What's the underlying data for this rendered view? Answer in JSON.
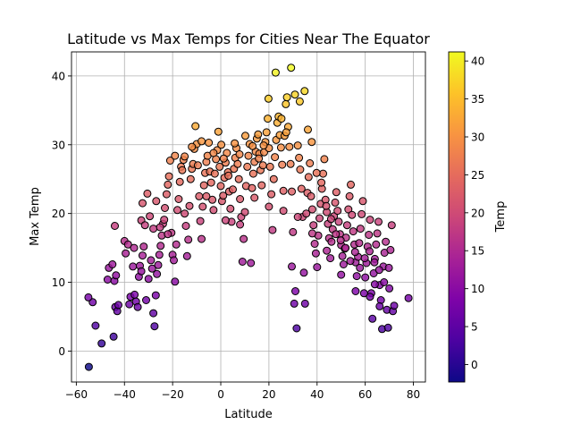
{
  "chart_data": {
    "type": "scatter",
    "title": "Latitude vs Max Temps for Cities Near The Equator",
    "xlabel": "Latitude",
    "ylabel": "Max Temp",
    "xlim": [
      -62,
      85
    ],
    "ylim": [
      -4.5,
      43.5
    ],
    "xticks": [
      -60,
      -40,
      -20,
      0,
      20,
      40,
      60,
      80
    ],
    "yticks": [
      0,
      10,
      20,
      30,
      40
    ],
    "grid": true,
    "colormap": "plasma",
    "colorbar": {
      "label": "Temp",
      "range": [
        -2.3,
        41.2
      ],
      "ticks": [
        0,
        5,
        10,
        15,
        20,
        25,
        30,
        35,
        40
      ]
    },
    "marker_edge_color": "#000000",
    "points": [
      [
        -54.8,
        -2.3
      ],
      [
        -53.2,
        7.1
      ],
      [
        -55.0,
        7.8
      ],
      [
        -52.0,
        3.7
      ],
      [
        -49.5,
        1.1
      ],
      [
        -47.0,
        10.4
      ],
      [
        -46.5,
        12.1
      ],
      [
        -45.0,
        12.6
      ],
      [
        -44.2,
        10.2
      ],
      [
        -43.5,
        11.0
      ],
      [
        -44.5,
        2.1
      ],
      [
        -43.8,
        6.4
      ],
      [
        -43.0,
        5.8
      ],
      [
        -42.5,
        6.7
      ],
      [
        -44.0,
        18.2
      ],
      [
        -40.0,
        16.0
      ],
      [
        -39.5,
        14.2
      ],
      [
        -38.5,
        15.5
      ],
      [
        -38.0,
        6.8
      ],
      [
        -37.5,
        7.9
      ],
      [
        -36.5,
        12.3
      ],
      [
        -35.8,
        8.2
      ],
      [
        -35.2,
        7.2
      ],
      [
        -34.5,
        6.4
      ],
      [
        -34.0,
        10.8
      ],
      [
        -33.6,
        12.4
      ],
      [
        -33.0,
        11.6
      ],
      [
        -32.5,
        13.9
      ],
      [
        -32.0,
        15.2
      ],
      [
        -33.0,
        19.0
      ],
      [
        -32.5,
        21.5
      ],
      [
        -31.5,
        18.3
      ],
      [
        -31.0,
        7.4
      ],
      [
        -30.0,
        10.5
      ],
      [
        -29.0,
        13.2
      ],
      [
        -28.5,
        12.0
      ],
      [
        -28.0,
        5.5
      ],
      [
        -27.5,
        3.6
      ],
      [
        -27.0,
        8.1
      ],
      [
        -26.5,
        11.2
      ],
      [
        -26.0,
        12.5
      ],
      [
        -25.5,
        14.0
      ],
      [
        -25.0,
        15.3
      ],
      [
        -24.5,
        16.8
      ],
      [
        -24.0,
        18.5
      ],
      [
        -23.5,
        19.1
      ],
      [
        -23.2,
        20.8
      ],
      [
        -22.5,
        22.8
      ],
      [
        -22.0,
        24.2
      ],
      [
        -21.5,
        25.4
      ],
      [
        -21.0,
        27.7
      ],
      [
        -20.5,
        17.2
      ],
      [
        -20.0,
        14.0
      ],
      [
        -19.5,
        13.2
      ],
      [
        -19.0,
        10.1
      ],
      [
        -18.5,
        15.5
      ],
      [
        -18.0,
        20.5
      ],
      [
        -17.5,
        22.1
      ],
      [
        -17.0,
        24.6
      ],
      [
        -16.5,
        26.8
      ],
      [
        -16.0,
        26.3
      ],
      [
        -15.5,
        27.8
      ],
      [
        -15.0,
        28.3
      ],
      [
        -14.5,
        18.2
      ],
      [
        -14.0,
        13.8
      ],
      [
        -13.5,
        16.2
      ],
      [
        -13.0,
        21.1
      ],
      [
        -12.5,
        25.0
      ],
      [
        -12.0,
        26.5
      ],
      [
        -11.5,
        27.2
      ],
      [
        -11.0,
        29.4
      ],
      [
        -10.5,
        32.7
      ],
      [
        -10.0,
        30.1
      ],
      [
        -9.5,
        27.0
      ],
      [
        -9.0,
        22.5
      ],
      [
        -8.5,
        18.9
      ],
      [
        -8.0,
        16.3
      ],
      [
        -7.5,
        21.0
      ],
      [
        -7.0,
        24.1
      ],
      [
        -6.5,
        25.9
      ],
      [
        -6.0,
        27.5
      ],
      [
        -5.5,
        28.4
      ],
      [
        -5.0,
        30.3
      ],
      [
        -4.5,
        26.1
      ],
      [
        -4.0,
        24.5
      ],
      [
        -3.5,
        22.0
      ],
      [
        -3.0,
        20.5
      ],
      [
        -2.5,
        25.8
      ],
      [
        -2.0,
        27.9
      ],
      [
        -1.5,
        29.2
      ],
      [
        -1.0,
        31.9
      ],
      [
        -0.5,
        26.8
      ],
      [
        0.0,
        24.0
      ],
      [
        0.5,
        21.8
      ],
      [
        1.0,
        22.6
      ],
      [
        1.5,
        25.2
      ],
      [
        2.0,
        27.4
      ],
      [
        2.5,
        28.8
      ],
      [
        3.0,
        26.0
      ],
      [
        3.5,
        23.2
      ],
      [
        4.0,
        20.7
      ],
      [
        4.5,
        18.8
      ],
      [
        5.0,
        23.5
      ],
      [
        5.5,
        26.5
      ],
      [
        6.0,
        28.1
      ],
      [
        6.5,
        29.5
      ],
      [
        7.0,
        27.2
      ],
      [
        7.5,
        25.0
      ],
      [
        8.0,
        22.1
      ],
      [
        8.5,
        19.5
      ],
      [
        9.0,
        13.0
      ],
      [
        9.5,
        16.3
      ],
      [
        10.0,
        20.2
      ],
      [
        10.5,
        24.0
      ],
      [
        11.0,
        26.8
      ],
      [
        11.5,
        28.4
      ],
      [
        12.0,
        30.1
      ],
      [
        12.5,
        12.8
      ],
      [
        13.0,
        23.7
      ],
      [
        13.5,
        25.8
      ],
      [
        14.0,
        27.5
      ],
      [
        14.5,
        29.0
      ],
      [
        15.0,
        30.9
      ],
      [
        15.5,
        31.5
      ],
      [
        16.0,
        28.7
      ],
      [
        16.5,
        26.3
      ],
      [
        17.0,
        24.1
      ],
      [
        17.5,
        27.0
      ],
      [
        18.0,
        28.9
      ],
      [
        18.5,
        30.4
      ],
      [
        19.0,
        31.8
      ],
      [
        19.5,
        33.8
      ],
      [
        20.0,
        29.5
      ],
      [
        20.5,
        26.8
      ],
      [
        21.0,
        22.8
      ],
      [
        21.5,
        17.6
      ],
      [
        22.0,
        25.0
      ],
      [
        22.5,
        28.2
      ],
      [
        23.0,
        30.7
      ],
      [
        23.5,
        33.2
      ],
      [
        24.0,
        34.1
      ],
      [
        24.5,
        31.4
      ],
      [
        25.0,
        29.6
      ],
      [
        25.5,
        27.1
      ],
      [
        26.0,
        23.3
      ],
      [
        26.5,
        31.3
      ],
      [
        27.0,
        35.9
      ],
      [
        27.5,
        36.9
      ],
      [
        28.0,
        32.6
      ],
      [
        28.5,
        29.7
      ],
      [
        29.0,
        27.2
      ],
      [
        29.5,
        23.2
      ],
      [
        30.0,
        17.3
      ],
      [
        29.5,
        12.3
      ],
      [
        30.5,
        6.9
      ],
      [
        31.0,
        8.7
      ],
      [
        31.5,
        3.3
      ],
      [
        32.0,
        29.9
      ],
      [
        32.5,
        28.1
      ],
      [
        33.0,
        26.4
      ],
      [
        33.5,
        23.6
      ],
      [
        34.0,
        19.5
      ],
      [
        34.5,
        11.4
      ],
      [
        35.0,
        6.9
      ],
      [
        35.5,
        20.0
      ],
      [
        36.0,
        23.0
      ],
      [
        36.5,
        25.3
      ],
      [
        37.0,
        27.3
      ],
      [
        37.5,
        22.5
      ],
      [
        38.0,
        20.6
      ],
      [
        38.5,
        18.3
      ],
      [
        39.0,
        15.6
      ],
      [
        39.5,
        14.2
      ],
      [
        40.0,
        12.2
      ],
      [
        40.5,
        16.8
      ],
      [
        41.0,
        19.3
      ],
      [
        41.5,
        21.4
      ],
      [
        42.0,
        23.6
      ],
      [
        42.5,
        25.8
      ],
      [
        43.0,
        27.9
      ],
      [
        43.5,
        22.0
      ],
      [
        44.0,
        20.2
      ],
      [
        44.5,
        18.5
      ],
      [
        45.0,
        16.4
      ],
      [
        45.5,
        13.5
      ],
      [
        46.0,
        15.9
      ],
      [
        46.5,
        17.7
      ],
      [
        47.0,
        19.6
      ],
      [
        47.5,
        21.6
      ],
      [
        48.0,
        23.1
      ],
      [
        48.5,
        20.4
      ],
      [
        49.0,
        18.8
      ],
      [
        49.5,
        17.0
      ],
      [
        50.0,
        15.4
      ],
      [
        50.5,
        13.8
      ],
      [
        51.0,
        12.6
      ],
      [
        51.5,
        14.9
      ],
      [
        52.0,
        16.5
      ],
      [
        52.5,
        18.3
      ],
      [
        53.0,
        20.6
      ],
      [
        53.5,
        22.5
      ],
      [
        54.0,
        24.2
      ],
      [
        54.5,
        19.8
      ],
      [
        55.0,
        17.4
      ],
      [
        55.5,
        15.5
      ],
      [
        56.0,
        12.9
      ],
      [
        56.5,
        10.9
      ],
      [
        57.0,
        13.7
      ],
      [
        57.5,
        15.7
      ],
      [
        58.0,
        17.8
      ],
      [
        58.5,
        19.9
      ],
      [
        59.0,
        21.8
      ],
      [
        59.5,
        8.4
      ],
      [
        60.0,
        10.7
      ],
      [
        60.5,
        12.8
      ],
      [
        61.0,
        15.2
      ],
      [
        61.5,
        16.9
      ],
      [
        62.0,
        19.1
      ],
      [
        62.5,
        8.4
      ],
      [
        63.0,
        4.7
      ],
      [
        63.5,
        11.3
      ],
      [
        64.0,
        13.4
      ],
      [
        64.5,
        15.5
      ],
      [
        65.0,
        17.1
      ],
      [
        65.5,
        18.8
      ],
      [
        66.0,
        9.6
      ],
      [
        66.5,
        7.4
      ],
      [
        67.0,
        3.2
      ],
      [
        67.5,
        12.3
      ],
      [
        68.0,
        14.3
      ],
      [
        68.5,
        15.9
      ],
      [
        69.0,
        6.0
      ],
      [
        69.5,
        3.4
      ],
      [
        70.0,
        9.1
      ],
      [
        70.5,
        14.7
      ],
      [
        71.0,
        18.3
      ],
      [
        71.5,
        5.8
      ],
      [
        72.0,
        6.6
      ],
      [
        78.0,
        7.7
      ],
      [
        -30.5,
        22.9
      ],
      [
        -29.5,
        19.6
      ],
      [
        -28.0,
        17.8
      ],
      [
        -26.8,
        21.8
      ],
      [
        -25.2,
        18.0
      ],
      [
        -19.0,
        28.4
      ],
      [
        -12.0,
        29.7
      ],
      [
        -8.0,
        30.5
      ],
      [
        -3.0,
        28.8
      ],
      [
        0.2,
        30.0
      ],
      [
        1.2,
        28.0
      ],
      [
        3.2,
        25.5
      ],
      [
        5.8,
        30.2
      ],
      [
        7.8,
        28.6
      ],
      [
        10.2,
        31.3
      ],
      [
        13.2,
        29.8
      ],
      [
        15.8,
        28.0
      ],
      [
        17.8,
        29.9
      ],
      [
        19.8,
        36.7
      ],
      [
        22.8,
        40.5
      ],
      [
        25.2,
        33.8
      ],
      [
        27.2,
        31.8
      ],
      [
        29.2,
        41.2
      ],
      [
        30.8,
        37.3
      ],
      [
        32.8,
        36.3
      ],
      [
        34.8,
        37.8
      ],
      [
        36.2,
        32.2
      ],
      [
        37.8,
        30.4
      ],
      [
        39.8,
        25.9
      ],
      [
        41.8,
        24.5
      ],
      [
        43.8,
        21.1
      ],
      [
        45.8,
        19.2
      ],
      [
        47.8,
        17.0
      ],
      [
        49.8,
        16.1
      ],
      [
        51.8,
        15.0
      ],
      [
        53.8,
        13.1
      ],
      [
        55.8,
        14.4
      ],
      [
        57.8,
        12.1
      ],
      [
        59.8,
        13.5
      ],
      [
        61.8,
        14.5
      ],
      [
        63.8,
        12.9
      ],
      [
        65.8,
        11.8
      ],
      [
        67.8,
        10.0
      ],
      [
        69.8,
        12.1
      ],
      [
        -36.0,
        15.0
      ],
      [
        -22.0,
        17.0
      ],
      [
        -15.0,
        20.0
      ],
      [
        -6.0,
        22.5
      ],
      [
        2.0,
        19.0
      ],
      [
        8.0,
        18.4
      ],
      [
        14.0,
        22.3
      ],
      [
        20.0,
        21.0
      ],
      [
        26.0,
        20.4
      ],
      [
        32.0,
        19.5
      ],
      [
        38.0,
        17.1
      ],
      [
        44.0,
        14.6
      ],
      [
        50.0,
        11.1
      ],
      [
        56.0,
        8.7
      ],
      [
        62.0,
        7.9
      ],
      [
        64.0,
        9.7
      ],
      [
        66.0,
        6.5
      ]
    ]
  }
}
